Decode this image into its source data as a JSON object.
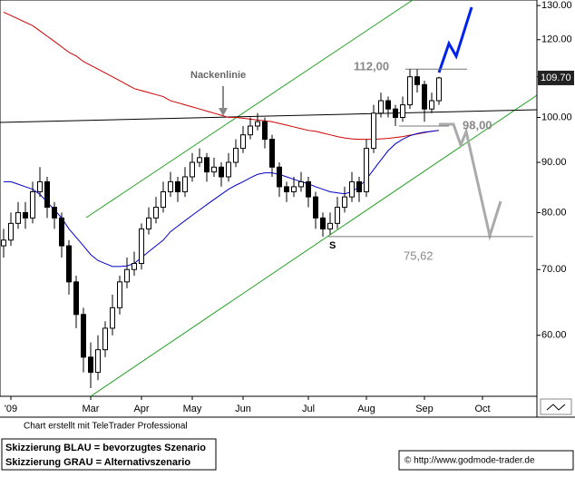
{
  "chart_data": {
    "type": "candlestick",
    "log_scale": true,
    "categories": [
      null,
      "'09",
      null,
      null,
      null,
      null,
      null,
      null,
      null,
      null,
      null,
      null,
      "Mar",
      null,
      null,
      null,
      null,
      null,
      null,
      "Apr",
      null,
      null,
      null,
      null,
      null,
      null,
      "May",
      null,
      null,
      null,
      null,
      null,
      null,
      "Jun",
      null,
      null,
      null,
      null,
      null,
      null,
      null,
      null,
      "Jul",
      null,
      null,
      null,
      null,
      null,
      null,
      null,
      "Aug",
      null,
      null,
      null,
      null,
      null,
      null,
      null,
      "Sep",
      null,
      null,
      null,
      null,
      null,
      null,
      null,
      "Oct",
      null,
      null,
      null,
      null,
      null,
      null,
      null
    ],
    "open": [
      74,
      75,
      78,
      80,
      79,
      84,
      86,
      81,
      79,
      74,
      68,
      63,
      57,
      55,
      58,
      61,
      64,
      68,
      70,
      71,
      77,
      79,
      81,
      84,
      86,
      84,
      87,
      90,
      91,
      88,
      89,
      87,
      90,
      93,
      96,
      98,
      99,
      95,
      89,
      85,
      84,
      85,
      86,
      83,
      79,
      77,
      78,
      81,
      83,
      86,
      84,
      93,
      101,
      104,
      102,
      100,
      103,
      110,
      108,
      102,
      104,
      null,
      null,
      null,
      null,
      null,
      null,
      null,
      null,
      null,
      null,
      null,
      null,
      null
    ],
    "high": [
      77,
      80,
      82,
      82,
      86,
      89,
      87,
      82,
      80,
      75,
      69,
      64,
      59,
      60,
      62,
      66,
      69,
      72,
      73,
      78,
      81,
      83,
      86,
      88,
      87,
      89,
      92,
      93,
      92,
      91,
      90,
      92,
      95,
      98,
      100,
      101,
      100,
      96,
      90,
      86,
      87,
      88,
      87,
      84,
      80,
      80,
      83,
      85,
      88,
      87,
      95,
      103,
      106,
      105,
      103,
      105,
      112,
      112,
      109,
      106,
      110,
      null,
      null,
      null,
      null,
      null,
      null,
      null,
      null,
      null,
      null,
      null,
      null,
      null
    ],
    "low": [
      72,
      74,
      77,
      77,
      78,
      83,
      79,
      77,
      72,
      66,
      61,
      55,
      53,
      54,
      57,
      60,
      63,
      67,
      69,
      70,
      76,
      78,
      80,
      83,
      82,
      83,
      86,
      89,
      86,
      87,
      85,
      86,
      89,
      92,
      95,
      97,
      93,
      87,
      83,
      82,
      83,
      84,
      81,
      77,
      75.6,
      76,
      77,
      80,
      82,
      82,
      83,
      92,
      100,
      100,
      98,
      99,
      102,
      106,
      99,
      101,
      103,
      null,
      null,
      null,
      null,
      null,
      null,
      null,
      null,
      null,
      null,
      null,
      null,
      null
    ],
    "close": [
      75,
      78,
      80,
      79,
      84,
      86,
      81,
      79,
      74,
      68,
      63,
      57,
      55,
      58,
      61,
      64,
      68,
      70,
      71,
      77,
      79,
      81,
      84,
      86,
      84,
      87,
      90,
      91,
      88,
      89,
      87,
      90,
      93,
      96,
      98,
      99,
      95,
      89,
      85,
      84,
      85,
      86,
      83,
      79,
      77,
      78,
      81,
      83,
      86,
      84,
      93,
      101,
      104,
      102,
      100,
      103,
      110,
      108,
      102,
      104,
      109.7,
      null,
      null,
      null,
      null,
      null,
      null,
      null,
      null,
      null,
      null,
      null,
      null,
      null
    ],
    "moving_averages": [
      {
        "color": "#d00000",
        "values": [
          128,
          127,
          126,
          125,
          124,
          122.5,
          121,
          119.5,
          118,
          116.5,
          115.5,
          114,
          113,
          112,
          111,
          110,
          109,
          108,
          107,
          106.5,
          106,
          105.5,
          105,
          104,
          103.5,
          103,
          102.5,
          102,
          101.5,
          101,
          100.5,
          100,
          100,
          99.8,
          99.6,
          99.4,
          99.2,
          99,
          98.6,
          98.2,
          97.8,
          97.4,
          97,
          96.8,
          96.4,
          96,
          95.6,
          95.3,
          95.1,
          95,
          95,
          95,
          95.1,
          95.2,
          95.4,
          95.6,
          95.9,
          96.2,
          96.5,
          96.8,
          97,
          null,
          null,
          null,
          null,
          null,
          null,
          null,
          null,
          null,
          null,
          null,
          null,
          null
        ]
      },
      {
        "color": "#0000cc",
        "values": [
          86,
          86,
          85.5,
          85,
          84.5,
          83.5,
          82,
          80.5,
          79,
          77,
          75.5,
          74,
          72.5,
          71.5,
          71,
          70.5,
          70.5,
          70.6,
          71,
          72,
          73,
          74,
          75,
          76.5,
          77.5,
          78.5,
          79.5,
          80.5,
          81.5,
          82.5,
          83.5,
          84.5,
          85.3,
          86,
          86.8,
          87.5,
          87.8,
          87.8,
          87.5,
          87,
          86.5,
          86,
          85.6,
          85,
          84.5,
          84,
          83.8,
          83.6,
          84,
          85,
          86.5,
          88.5,
          90.5,
          92.5,
          94,
          95,
          95.8,
          96.3,
          96.6,
          96.8,
          97,
          null,
          null,
          null,
          null,
          null,
          null,
          null,
          null,
          null,
          null,
          null,
          null,
          null
        ]
      }
    ],
    "ylim": [
      52,
      131.7
    ],
    "yticks": [
      {
        "value": 60,
        "label": "60.00"
      },
      {
        "value": 70,
        "label": "70.00"
      },
      {
        "value": 80,
        "label": "80.00"
      },
      {
        "value": 90,
        "label": "90.00"
      },
      {
        "value": 100,
        "label": "100.00"
      },
      {
        "value": 110,
        "label": "110.00"
      },
      {
        "value": 120,
        "label": "120.00"
      },
      {
        "value": 130,
        "label": "130.00"
      }
    ],
    "last_price": {
      "value": 109.7,
      "label": "109.70"
    },
    "levels": {
      "values": [
        112,
        98,
        75.62
      ],
      "value_labels": [
        "112,00",
        "98,00",
        "75,62"
      ]
    },
    "annotations": {
      "neckline": "Nackenlinie",
      "support": "S"
    },
    "credit": "Chart erstellt mit TeleTrader Professional",
    "legend_lines": [
      "Skizzierung BLAU = bevorzugtes Szenario",
      "Skizzierung GRAU = Alternativszenario"
    ],
    "website": "© http://www.godmode-trader.de"
  }
}
